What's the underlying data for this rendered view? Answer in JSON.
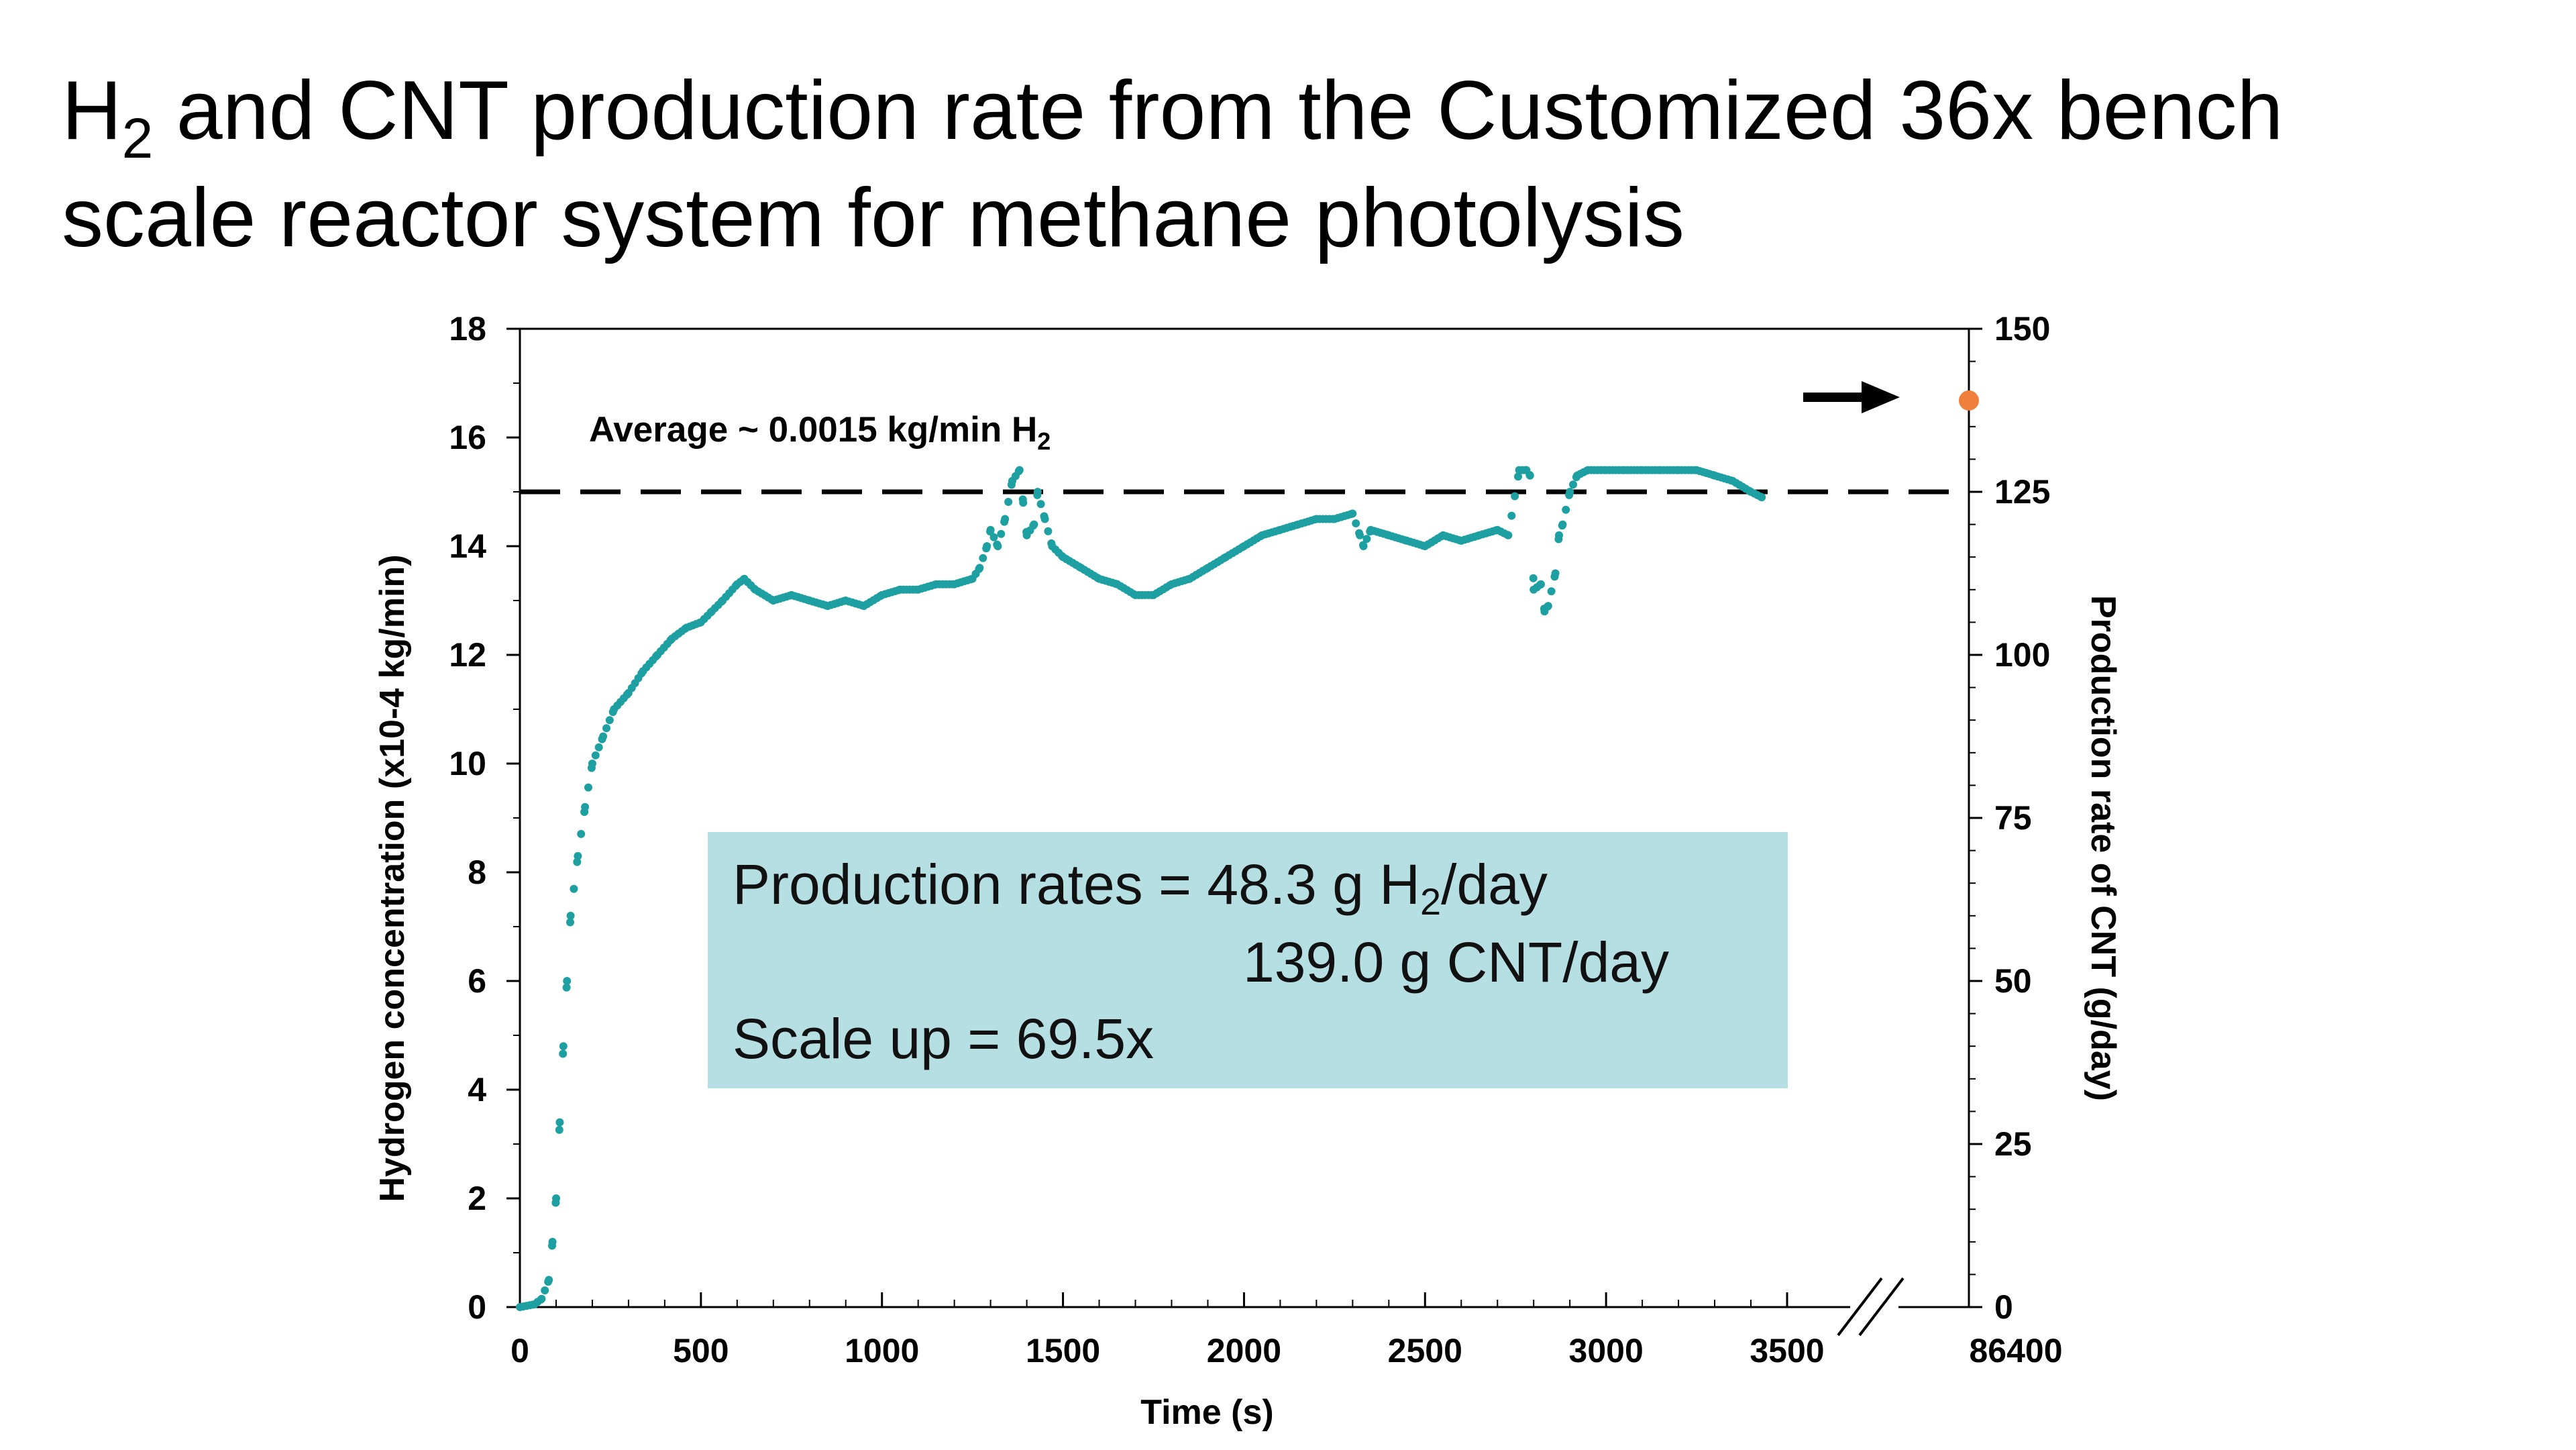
{
  "title": {
    "prefix": "H",
    "subscript": "2",
    "rest": " and CNT production rate from the Customized 36x bench",
    "line2": "scale reactor system for methane photolysis"
  },
  "info_box": {
    "line1_prefix": "Production rates = 48.3 g H",
    "line1_sub": "2",
    "line1_suffix": "/day",
    "line2": "139.0 g CNT/day",
    "line3": "Scale up = 69.5x"
  },
  "colors": {
    "series": "#1e9fa2",
    "cnt_point": "#f07f3c",
    "box": "#b5dfe3",
    "axis": "#000000"
  },
  "chart_data": {
    "type": "scatter",
    "xlabel": "Time (s)",
    "ylabel_left": "Hydrogen concentration  (x10-4 kg/min)",
    "ylabel_right": "Production rate of CNT (g/day)",
    "xlim": [
      0,
      3800
    ],
    "ylim_left": [
      0,
      18
    ],
    "ylim_right": [
      0,
      150
    ],
    "x_ticks": [
      0,
      500,
      1000,
      1500,
      2000,
      2500,
      3000,
      3500
    ],
    "x_tick_labels": [
      "0",
      "500",
      "1000",
      "1500",
      "2000",
      "2500",
      "3000",
      "3500"
    ],
    "x_break_label": "86400",
    "y_left_ticks": [
      0,
      2,
      4,
      6,
      8,
      10,
      12,
      14,
      16,
      18
    ],
    "y_left_tick_labels": [
      "0",
      "2",
      "4",
      "6",
      "8",
      "10",
      "12",
      "14",
      "16",
      "18"
    ],
    "y_right_ticks": [
      0,
      25,
      50,
      75,
      100,
      125,
      150
    ],
    "y_right_tick_labels": [
      "0",
      "25",
      "50",
      "75",
      "100",
      "125",
      "150"
    ],
    "average_line": {
      "y": 15,
      "label_prefix": "Average ~ 0.0015 kg/min H",
      "label_sub": "2"
    },
    "series": [
      {
        "axis": "left",
        "color": "#1e9fa2",
        "x": [
          0,
          40,
          60,
          80,
          90,
          100,
          110,
          120,
          130,
          140,
          160,
          180,
          200,
          230,
          260,
          300,
          340,
          380,
          420,
          460,
          500,
          530,
          560,
          600,
          620,
          650,
          700,
          750,
          800,
          850,
          900,
          950,
          1000,
          1050,
          1100,
          1150,
          1200,
          1250,
          1270,
          1290,
          1300,
          1320,
          1340,
          1360,
          1380,
          1390,
          1400,
          1420,
          1430,
          1450,
          1470,
          1500,
          1550,
          1600,
          1650,
          1700,
          1750,
          1800,
          1850,
          1900,
          1950,
          2000,
          2050,
          2100,
          2150,
          2200,
          2250,
          2300,
          2320,
          2330,
          2350,
          2400,
          2450,
          2500,
          2550,
          2600,
          2650,
          2700,
          2730,
          2760,
          2780,
          2790,
          2800,
          2820,
          2830,
          2840,
          2860,
          2870,
          2880,
          2900,
          2920,
          2950,
          3000,
          3050,
          3100,
          3150,
          3200,
          3250,
          3300,
          3350,
          3400,
          3430
        ],
        "y": [
          0.0,
          0.05,
          0.15,
          0.5,
          1.2,
          2.0,
          3.4,
          4.8,
          6.0,
          7.2,
          8.3,
          9.2,
          10.0,
          10.5,
          11.0,
          11.3,
          11.7,
          12.0,
          12.3,
          12.5,
          12.6,
          12.8,
          13.0,
          13.3,
          13.4,
          13.2,
          13.0,
          13.1,
          13.0,
          12.9,
          13.0,
          12.9,
          13.1,
          13.2,
          13.2,
          13.3,
          13.3,
          13.4,
          13.6,
          14.0,
          14.3,
          14.0,
          14.5,
          15.2,
          15.4,
          14.8,
          14.2,
          14.4,
          15.0,
          14.5,
          14.0,
          13.8,
          13.6,
          13.4,
          13.3,
          13.1,
          13.1,
          13.3,
          13.4,
          13.6,
          13.8,
          14.0,
          14.2,
          14.3,
          14.4,
          14.5,
          14.5,
          14.6,
          14.2,
          14.0,
          14.3,
          14.2,
          14.1,
          14.0,
          14.2,
          14.1,
          14.2,
          14.3,
          14.2,
          15.4,
          15.4,
          15.3,
          13.2,
          13.3,
          12.8,
          12.9,
          13.5,
          14.2,
          14.4,
          15.0,
          15.3,
          15.4,
          15.4,
          15.4,
          15.4,
          15.4,
          15.4,
          15.4,
          15.3,
          15.2,
          15.0,
          14.9
        ]
      },
      {
        "axis": "right",
        "color": "#f07f3c",
        "x_label": "86400",
        "y": [
          139.0
        ]
      }
    ]
  }
}
